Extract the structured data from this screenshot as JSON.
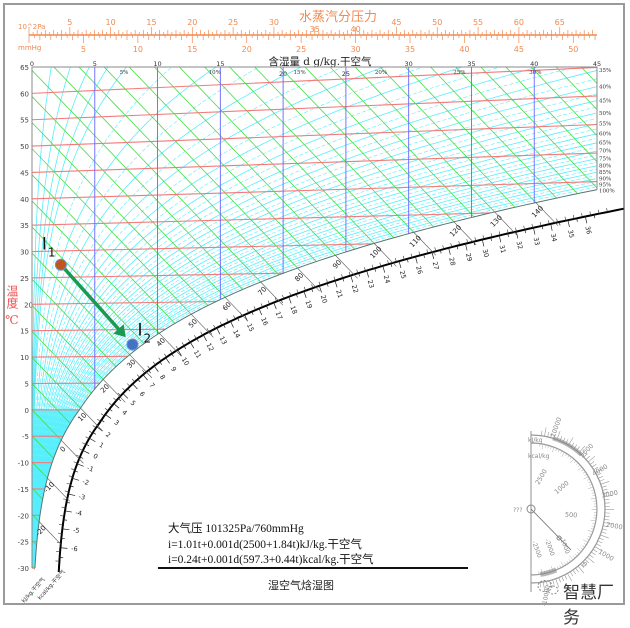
{
  "pressure_scale": {
    "title": "水蒸汽分压力",
    "unit_top": "10^2Pa",
    "unit_bottom": "mmHg",
    "top_ticks": [
      5,
      10,
      15,
      20,
      25,
      30,
      35,
      40,
      45,
      50,
      55,
      60,
      65
    ],
    "bottom_ticks": [
      5,
      10,
      15,
      20,
      25,
      30,
      35,
      40,
      45,
      50
    ],
    "color": "#f08a50"
  },
  "chart_data": {
    "type": "psychrometric i-d chart",
    "title": "湿空气焓湿图",
    "x_axis": {
      "label": "含湿量 d g/kg.干空气",
      "ticks": [
        0,
        5,
        10,
        15,
        20,
        25,
        30,
        35,
        40,
        45
      ],
      "range": [
        0,
        45
      ]
    },
    "y_axis": {
      "label": "温度 ℃",
      "ticks": [
        65,
        60,
        55,
        50,
        45,
        40,
        35,
        30,
        25,
        20,
        15,
        10,
        5,
        0,
        -5,
        -10,
        -15,
        -20,
        -25,
        -30
      ],
      "range": [
        -30,
        65
      ]
    },
    "rh_labels": [
      "5%",
      "10%",
      "15%",
      "20%",
      "25%",
      "30%",
      "35%",
      "40%",
      "45%",
      "50%",
      "55%",
      "60%",
      "65%",
      "70%",
      "75%",
      "80%",
      "85%",
      "90%",
      "95%",
      "100%"
    ],
    "rh_values": [
      5,
      10,
      15,
      20,
      25,
      30,
      35,
      40,
      45,
      50,
      55,
      60,
      65,
      70,
      75,
      80,
      85,
      90,
      95,
      100
    ],
    "enthalpy_kj_labels": [
      -20,
      -10,
      0,
      10,
      20,
      30,
      40,
      50,
      60,
      70,
      80,
      90,
      100,
      110,
      120,
      130,
      140
    ],
    "enthalpy_kcal_labels": [
      -6,
      -5,
      -4,
      -3,
      -2,
      -1,
      0,
      1,
      2,
      3,
      4,
      5,
      6,
      7,
      8,
      9,
      10,
      11,
      12,
      13,
      14,
      15,
      16,
      17,
      18,
      19,
      20,
      21,
      22,
      23,
      24,
      25,
      26,
      27,
      28,
      29,
      30,
      31,
      32,
      33,
      34,
      35,
      36
    ],
    "enthalpy_unit_kj": "kJ/kg.干空气",
    "enthalpy_unit_kcal": "kcal/kg.干空气",
    "points": [
      {
        "label": "I",
        "sub": "1",
        "d": 2.3,
        "t": 27.4,
        "color": "#c0561b"
      },
      {
        "label": "I",
        "sub": "2",
        "d": 8.0,
        "t": 12.2,
        "color": "#4472c4"
      }
    ],
    "process_arrow": {
      "from": "I1",
      "to": "I2",
      "color": "#1a9a50"
    },
    "colors": {
      "isotherm": "#f47a7a",
      "enthalpy": "#44dd44",
      "rh": "#55eeff",
      "moisture": "#6666ff",
      "saturation": "#557777"
    }
  },
  "protractor": {
    "unit_kj": "kJ/kg",
    "unit_kcal": "kcal/kg",
    "outer_labels": [
      "10000",
      "5000",
      "4000",
      "3000",
      "2000",
      "1000",
      "0"
    ],
    "inner_labels": [
      "2500",
      "1000",
      "500"
    ],
    "lower_labels": [
      "-2500",
      "-2000",
      "-1000"
    ],
    "bottom_label": "-10000",
    "side_mark": "???"
  },
  "notes": {
    "pressure": "大气压 101325Pa/760mmHg",
    "formula_kj": "i=1.01t+0.001d(2500+1.84t)kJ/kg.干空气",
    "formula_kcal": "i=0.24t+0.001d(597.3+0.44t)kcal/kg.干空气"
  },
  "watermark": "智慧厂务"
}
